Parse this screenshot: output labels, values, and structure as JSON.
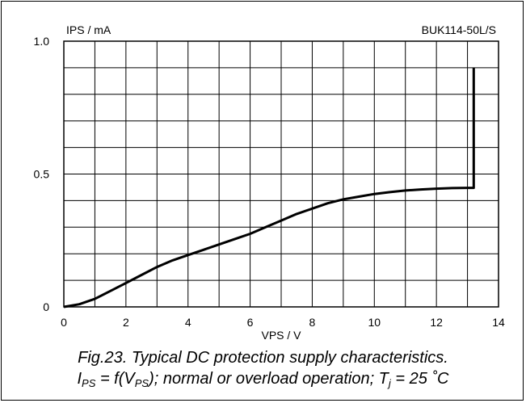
{
  "chart_data": {
    "type": "line",
    "title": "BUK114-50L/S",
    "xlabel": "VPS / V",
    "ylabel": "IPS / mA",
    "xlim": [
      0,
      14
    ],
    "ylim": [
      0,
      1.0
    ],
    "x_ticks": [
      "0",
      "2",
      "4",
      "6",
      "8",
      "10",
      "12",
      "14"
    ],
    "y_ticks": [
      "0",
      "0.5",
      "1.0"
    ],
    "grid": true,
    "series": [
      {
        "x": [
          0,
          0.5,
          1.0,
          1.5,
          2.0,
          2.5,
          3.0,
          3.5,
          4.0,
          4.5,
          5.0,
          5.5,
          6.0,
          6.5,
          7.0,
          7.5,
          8.0,
          8.5,
          9.0,
          9.5,
          10.0,
          10.5,
          11.0,
          11.5,
          12.0,
          12.5,
          13.0,
          13.2,
          13.2
        ],
        "y": [
          0,
          0.01,
          0.03,
          0.06,
          0.09,
          0.12,
          0.15,
          0.175,
          0.195,
          0.215,
          0.235,
          0.255,
          0.275,
          0.3,
          0.325,
          0.35,
          0.37,
          0.39,
          0.405,
          0.415,
          0.425,
          0.432,
          0.438,
          0.442,
          0.445,
          0.447,
          0.448,
          0.448,
          0.9
        ]
      }
    ]
  },
  "caption": {
    "line1": "Fig.23.   Typical DC protection supply characteristics.",
    "l2_i": "I",
    "l2_ps1": "PS",
    "l2_eq": " = f(V",
    "l2_ps2": "PS",
    "l2_mid": "); normal or overload operation; T",
    "l2_j": "j",
    "l2_end": " = 25 ˚C"
  }
}
